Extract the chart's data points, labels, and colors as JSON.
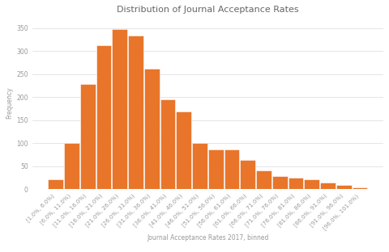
{
  "title": "Distribution of Journal Acceptance Rates",
  "xlabel": "Journal Acceptance Rates 2017, binned",
  "ylabel": "Frequency",
  "bar_color": "#E8752A",
  "background_color": "#FFFFFF",
  "categories": [
    "[1.0%, 6.0%)",
    "[6.0%, 11.0%)",
    "[11.0%, 16.0%)",
    "[16.0%, 21.0%)",
    "[21.0%, 26.0%)",
    "[26.0%, 31.0%)",
    "[31.0%, 36.0%)",
    "[36.0%, 41.0%)",
    "[41.0%, 46.0%)",
    "[46.0%, 51.0%)",
    "[51.0%, 56.0%)",
    "[56.0%, 61.0%)",
    "[61.0%, 66.0%)",
    "[66.0%, 71.0%)",
    "[71.0%, 76.0%)",
    "[76.0%, 81.0%)",
    "[81.0%, 86.0%)",
    "[86.0%, 91.0%)",
    "[91.0%, 96.0%)",
    "[96.0%, 101.0%)"
  ],
  "values": [
    22,
    100,
    228,
    313,
    348,
    333,
    262,
    195,
    168,
    100,
    87,
    86,
    63,
    40,
    28,
    25,
    22,
    14,
    9,
    3
  ],
  "ylim": [
    0,
    375
  ],
  "yticks": [
    0,
    50,
    100,
    150,
    200,
    250,
    300,
    350
  ],
  "title_fontsize": 8,
  "label_fontsize": 5.5,
  "tick_fontsize": 5,
  "ytick_fontsize": 5.5
}
